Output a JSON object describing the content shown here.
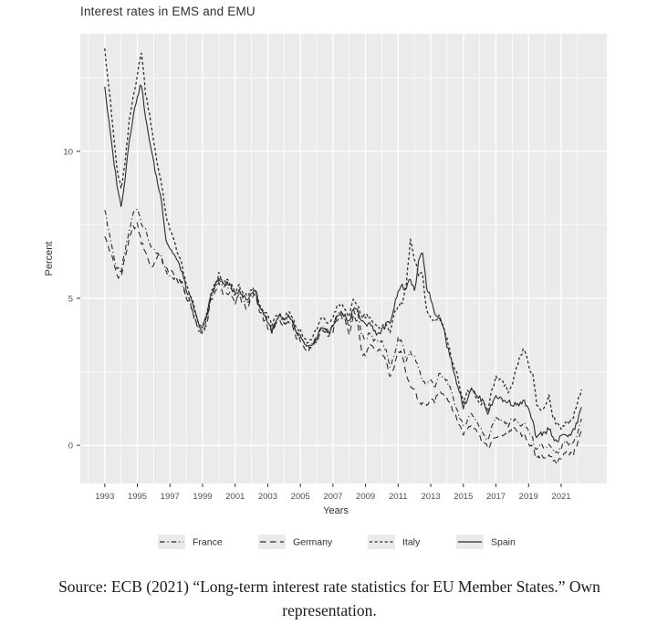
{
  "chart_data": {
    "type": "line",
    "title": "Interest rates in EMS and EMU",
    "xlabel": "Years",
    "ylabel": "Percent",
    "x_ticks": [
      1993,
      1995,
      1997,
      1999,
      2001,
      2003,
      2005,
      2007,
      2009,
      2011,
      2013,
      2015,
      2017,
      2019,
      2021
    ],
    "x_minor": [
      1992,
      1994,
      1996,
      1998,
      2000,
      2002,
      2004,
      2006,
      2008,
      2010,
      2012,
      2014,
      2016,
      2018,
      2020,
      2022
    ],
    "y_ticks": [
      0,
      5,
      10
    ],
    "y_minor": [
      2.5,
      7.5,
      12.5
    ],
    "xlim": [
      1991.5,
      2023.8
    ],
    "ylim": [
      -1.3,
      14.0
    ],
    "grid": true,
    "legend_position": "bottom",
    "x_start": 1993.0,
    "x_step": 0.25,
    "series": [
      {
        "name": "France",
        "dash": "dash-dot",
        "values": [
          8.0,
          7.3,
          6.6,
          6.0,
          5.9,
          6.6,
          7.3,
          7.9,
          8.1,
          7.6,
          7.3,
          6.9,
          6.6,
          6.5,
          6.4,
          5.9,
          5.8,
          5.7,
          5.6,
          5.5,
          5.1,
          4.9,
          4.4,
          4.0,
          3.9,
          4.3,
          5.0,
          5.4,
          5.7,
          5.4,
          5.4,
          5.3,
          5.0,
          5.2,
          5.0,
          4.8,
          5.1,
          5.2,
          4.7,
          4.5,
          4.2,
          3.9,
          4.2,
          4.4,
          4.1,
          4.4,
          4.2,
          3.8,
          3.7,
          3.4,
          3.3,
          3.5,
          3.6,
          4.0,
          4.0,
          3.8,
          4.1,
          4.4,
          4.5,
          4.4,
          4.0,
          4.6,
          4.5,
          3.8,
          3.6,
          3.8,
          3.6,
          3.6,
          3.5,
          3.2,
          2.7,
          3.0,
          3.6,
          3.5,
          2.9,
          3.2,
          3.0,
          2.6,
          2.2,
          2.1,
          2.2,
          2.0,
          2.4,
          2.3,
          2.2,
          1.8,
          1.4,
          1.0,
          0.6,
          0.9,
          1.1,
          0.9,
          0.6,
          0.4,
          0.2,
          0.6,
          1.0,
          0.8,
          0.8,
          0.7,
          0.9,
          0.8,
          0.7,
          0.7,
          0.5,
          0.2,
          -0.2,
          0.0,
          -0.1,
          0.0,
          -0.2,
          -0.3,
          -0.1,
          0.1,
          0.0,
          0.1,
          0.4,
          0.9
        ]
      },
      {
        "name": "Germany",
        "dash": "long-dash",
        "values": [
          7.1,
          6.7,
          6.3,
          5.8,
          5.7,
          6.4,
          7.0,
          7.4,
          7.5,
          6.9,
          6.6,
          6.2,
          6.1,
          6.5,
          6.3,
          6.0,
          5.9,
          5.8,
          5.6,
          5.6,
          5.0,
          4.8,
          4.3,
          3.9,
          3.8,
          4.1,
          4.9,
          5.2,
          5.5,
          5.2,
          5.2,
          5.1,
          4.8,
          5.1,
          4.8,
          4.6,
          5.0,
          5.1,
          4.5,
          4.3,
          4.0,
          3.8,
          4.1,
          4.3,
          4.0,
          4.3,
          4.1,
          3.7,
          3.6,
          3.3,
          3.2,
          3.4,
          3.5,
          3.9,
          3.9,
          3.7,
          3.9,
          4.3,
          4.4,
          4.2,
          3.8,
          4.4,
          4.2,
          3.2,
          3.0,
          3.4,
          3.3,
          3.2,
          3.2,
          2.8,
          2.4,
          2.7,
          3.2,
          3.1,
          2.3,
          2.0,
          1.9,
          1.5,
          1.4,
          1.4,
          1.5,
          1.5,
          1.8,
          1.8,
          1.6,
          1.4,
          1.0,
          0.7,
          0.4,
          0.6,
          0.7,
          0.6,
          0.3,
          0.1,
          -0.1,
          0.1,
          0.3,
          0.3,
          0.4,
          0.4,
          0.6,
          0.5,
          0.4,
          0.3,
          0.1,
          -0.1,
          -0.5,
          -0.3,
          -0.4,
          -0.4,
          -0.5,
          -0.6,
          -0.4,
          -0.2,
          -0.3,
          -0.3,
          0.1,
          0.5
        ]
      },
      {
        "name": "Italy",
        "dash": "short-dash",
        "values": [
          13.5,
          12.2,
          10.8,
          9.4,
          8.7,
          9.6,
          11.0,
          11.9,
          12.6,
          13.4,
          12.0,
          11.3,
          10.3,
          9.5,
          8.9,
          7.8,
          7.3,
          7.0,
          6.5,
          6.1,
          5.4,
          5.1,
          4.7,
          4.1,
          4.0,
          4.4,
          5.1,
          5.5,
          5.8,
          5.5,
          5.6,
          5.5,
          5.2,
          5.4,
          5.2,
          5.0,
          5.3,
          5.3,
          4.8,
          4.6,
          4.4,
          4.1,
          4.4,
          4.5,
          4.3,
          4.6,
          4.4,
          4.0,
          3.9,
          3.6,
          3.5,
          3.7,
          3.9,
          4.3,
          4.3,
          4.1,
          4.4,
          4.7,
          4.8,
          4.6,
          4.4,
          4.9,
          4.8,
          4.4,
          4.4,
          4.4,
          4.1,
          4.0,
          4.1,
          4.1,
          3.9,
          4.4,
          4.8,
          4.8,
          5.5,
          7.0,
          6.3,
          5.8,
          5.8,
          4.6,
          4.3,
          4.2,
          4.4,
          4.1,
          3.6,
          3.0,
          2.6,
          2.1,
          1.5,
          1.8,
          1.9,
          1.6,
          1.4,
          1.4,
          1.2,
          1.9,
          2.3,
          2.2,
          2.1,
          1.8,
          2.0,
          2.6,
          3.0,
          3.3,
          2.7,
          2.4,
          1.4,
          1.2,
          1.3,
          1.7,
          1.0,
          0.7,
          0.6,
          0.8,
          0.7,
          1.0,
          1.5,
          1.9
        ]
      },
      {
        "name": "Spain",
        "dash": "solid",
        "values": [
          12.2,
          11.0,
          9.9,
          8.9,
          8.1,
          9.1,
          10.4,
          11.2,
          11.9,
          12.3,
          11.1,
          10.4,
          9.6,
          8.9,
          8.3,
          7.0,
          6.7,
          6.5,
          6.2,
          5.9,
          5.3,
          5.0,
          4.6,
          4.1,
          4.0,
          4.4,
          5.1,
          5.4,
          5.7,
          5.5,
          5.5,
          5.4,
          5.1,
          5.3,
          5.1,
          4.9,
          5.2,
          5.3,
          4.7,
          4.5,
          4.2,
          3.9,
          4.2,
          4.4,
          4.2,
          4.4,
          4.2,
          3.8,
          3.7,
          3.4,
          3.3,
          3.5,
          3.6,
          4.0,
          4.0,
          3.8,
          4.1,
          4.4,
          4.5,
          4.4,
          4.2,
          4.7,
          4.6,
          4.2,
          4.1,
          4.2,
          3.9,
          3.8,
          3.9,
          4.1,
          4.2,
          4.7,
          5.3,
          5.4,
          5.3,
          5.7,
          5.2,
          6.2,
          6.6,
          5.4,
          5.0,
          4.5,
          4.4,
          4.1,
          3.4,
          2.9,
          2.3,
          1.9,
          1.3,
          1.6,
          2.0,
          1.7,
          1.6,
          1.5,
          1.1,
          1.4,
          1.7,
          1.6,
          1.5,
          1.5,
          1.4,
          1.4,
          1.4,
          1.5,
          1.2,
          0.8,
          0.2,
          0.4,
          0.4,
          0.6,
          0.3,
          0.1,
          0.3,
          0.4,
          0.3,
          0.5,
          0.8,
          1.3
        ]
      }
    ]
  },
  "legend": {
    "items": [
      {
        "label": "France"
      },
      {
        "label": "Germany"
      },
      {
        "label": "Italy"
      },
      {
        "label": "Spain"
      }
    ]
  },
  "caption": {
    "line1": "Source: ECB (2021) “Long-term interest rate statistics for EU Member States.” Own",
    "line2": "representation."
  },
  "colors": {
    "panel": "#ebebeb",
    "grid": "#ffffff",
    "line": "#2b2b2b",
    "tick": "#333333",
    "tick_label": "#4f4f4f",
    "legend_key_bg": "#eaeaea"
  }
}
